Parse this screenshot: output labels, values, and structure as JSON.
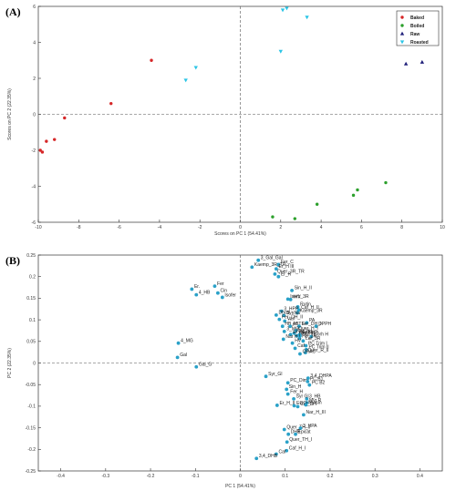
{
  "colors": {
    "Baked": "#d62728",
    "Boiled": "#2ca02c",
    "Raw": "#1f1f7a",
    "Roasted": "#2bc5e6",
    "loading": "#2aa1c8"
  },
  "chart_data": [
    {
      "type": "scatter",
      "panel_label": "(A)",
      "xlabel": "Scores on PC 1 (54.41%)",
      "ylabel": "Scores on PC 2 (22.35%)",
      "xlim": [
        -10,
        10
      ],
      "ylim": [
        -6,
        6
      ],
      "xticks": [
        -10,
        -8,
        -6,
        -4,
        -2,
        0,
        2,
        4,
        6,
        8,
        10
      ],
      "yticks": [
        -6,
        -4,
        -2,
        0,
        2,
        4,
        6
      ],
      "legend_position": "top-right",
      "series": [
        {
          "name": "Baked",
          "marker": "dot",
          "points": [
            [
              -9.9,
              -2.0
            ],
            [
              -9.8,
              -2.1
            ],
            [
              -9.6,
              -1.5
            ],
            [
              -9.2,
              -1.4
            ],
            [
              -8.7,
              -0.2
            ],
            [
              -6.4,
              0.6
            ],
            [
              -4.4,
              3.0
            ]
          ]
        },
        {
          "name": "Boiled",
          "marker": "dot",
          "points": [
            [
              2.7,
              -5.8
            ],
            [
              5.6,
              -4.5
            ],
            [
              5.8,
              -4.2
            ],
            [
              7.2,
              -3.8
            ],
            [
              3.8,
              -5.0
            ],
            [
              1.6,
              -5.7
            ]
          ]
        },
        {
          "name": "Raw",
          "marker": "triangle",
          "points": [
            [
              8.2,
              2.8
            ],
            [
              9.0,
              2.9
            ]
          ]
        },
        {
          "name": "Roasted",
          "marker": "triangle-down",
          "points": [
            [
              -2.7,
              1.9
            ],
            [
              -2.2,
              2.6
            ],
            [
              2.1,
              5.8
            ],
            [
              2.3,
              5.9
            ],
            [
              3.3,
              5.4
            ],
            [
              2.0,
              3.5
            ]
          ]
        }
      ]
    },
    {
      "type": "scatter",
      "panel_label": "(B)",
      "xlabel": "PC 1 (54.41%)",
      "ylabel": "PC 2 (22.35%)",
      "xlim": [
        -0.45,
        0.45
      ],
      "ylim": [
        -0.25,
        0.25
      ],
      "xticks": [
        -0.4,
        -0.3,
        -0.2,
        -0.1,
        0,
        0.1,
        0.2,
        0.3,
        0.4
      ],
      "yticks": [
        -0.25,
        -0.2,
        -0.15,
        -0.1,
        -0.05,
        0,
        0.05,
        0.1,
        0.15,
        0.2,
        0.25
      ],
      "points": [
        {
          "label": "3_Gal_Gal",
          "x": 0.04,
          "y": 0.238
        },
        {
          "label": "Fer_C",
          "x": 0.085,
          "y": 0.228
        },
        {
          "label": "Kaemp_3R_TR",
          "x": 0.026,
          "y": 0.222
        },
        {
          "label": "Er_H III",
          "x": 0.08,
          "y": 0.218
        },
        {
          "label": "Quer_3R_TR",
          "x": 0.077,
          "y": 0.206
        },
        {
          "label": "Er_R",
          "x": 0.085,
          "y": 0.2
        },
        {
          "label": "Er.",
          "x": -0.108,
          "y": 0.171
        },
        {
          "label": "Fer",
          "x": -0.057,
          "y": 0.178
        },
        {
          "label": "4_HB",
          "x": -0.098,
          "y": 0.158
        },
        {
          "label": "Cin",
          "x": -0.05,
          "y": 0.162
        },
        {
          "label": "Isofer",
          "x": -0.04,
          "y": 0.152
        },
        {
          "label": "Sin_H_II",
          "x": 0.115,
          "y": 0.168
        },
        {
          "label": "Isorh_3R",
          "x": 0.106,
          "y": 0.148
        },
        {
          "label": "IHV",
          "x": 0.112,
          "y": 0.147
        },
        {
          "label": "Rutin",
          "x": 0.128,
          "y": 0.13
        },
        {
          "label": "Caf_H_II",
          "x": 0.13,
          "y": 0.123
        },
        {
          "label": "3_HPP",
          "x": 0.092,
          "y": 0.12
        },
        {
          "label": "Kaemp_3R",
          "x": 0.127,
          "y": 0.116
        },
        {
          "label": "Dhcal",
          "x": 0.08,
          "y": 0.111
        },
        {
          "label": "SynNa",
          "x": 0.097,
          "y": 0.11
        },
        {
          "label": "Fer_DH_II",
          "x": 0.087,
          "y": 0.101
        },
        {
          "label": "Van",
          "x": 0.099,
          "y": 0.097
        },
        {
          "label": "PA",
          "x": 0.148,
          "y": 0.093
        },
        {
          "label": "HB_H",
          "x": 0.094,
          "y": 0.085
        },
        {
          "label": "ABTS",
          "x": 0.111,
          "y": 0.085
        },
        {
          "label": "Fer_DH_I",
          "x": 0.131,
          "y": 0.085
        },
        {
          "label": "DPPH",
          "x": 0.169,
          "y": 0.085
        },
        {
          "label": "3_MG",
          "x": 0.098,
          "y": 0.073
        },
        {
          "label": "Quer_H_I",
          "x": 0.124,
          "y": 0.075
        },
        {
          "label": "Nar_H I",
          "x": 0.12,
          "y": 0.069
        },
        {
          "label": "Er H1",
          "x": 0.112,
          "y": 0.066
        },
        {
          "label": "Gentisin",
          "x": 0.132,
          "y": 0.066
        },
        {
          "label": "Nar_H",
          "x": 0.126,
          "y": 0.063
        },
        {
          "label": "Caf_R",
          "x": 0.133,
          "y": 0.063
        },
        {
          "label": "Isorh H",
          "x": 0.158,
          "y": 0.061
        },
        {
          "label": "Nar H I",
          "x": 0.096,
          "y": 0.055
        },
        {
          "label": "HB_3R",
          "x": 0.132,
          "y": 0.057
        },
        {
          "label": "Lar_3R",
          "x": 0.14,
          "y": 0.051
        },
        {
          "label": "HV",
          "x": 0.116,
          "y": 0.046
        },
        {
          "label": "PC Trim I",
          "x": 0.146,
          "y": 0.04
        },
        {
          "label": "Caf",
          "x": 0.122,
          "y": 0.034
        },
        {
          "label": "PC Trim II",
          "x": 0.147,
          "y": 0.031
        },
        {
          "label": "Quer_R_II",
          "x": 0.145,
          "y": 0.024
        },
        {
          "label": "ORAC",
          "x": 0.133,
          "y": 0.021
        },
        {
          "label": "3,4_DHPA",
          "x": 0.151,
          "y": -0.035
        },
        {
          "label": "Syr_Gl",
          "x": 0.057,
          "y": -0.031
        },
        {
          "label": "PC_Dim",
          "x": 0.106,
          "y": -0.046
        },
        {
          "label": "PC B1",
          "x": 0.15,
          "y": -0.043
        },
        {
          "label": "PC B2",
          "x": 0.154,
          "y": -0.051
        },
        {
          "label": "Sin_H",
          "x": 0.103,
          "y": -0.061
        },
        {
          "label": "Fer_H",
          "x": 0.106,
          "y": -0.072
        },
        {
          "label": "3_HB",
          "x": 0.148,
          "y": -0.083
        },
        {
          "label": "Syr Gl",
          "x": 0.119,
          "y": -0.083
        },
        {
          "label": "Myr R",
          "x": 0.148,
          "y": -0.092
        },
        {
          "label": "Er_H_II",
          "x": 0.082,
          "y": -0.098
        },
        {
          "label": "EGC",
          "x": 0.12,
          "y": -0.099
        },
        {
          "label": "Caf_DH",
          "x": 0.128,
          "y": -0.101
        },
        {
          "label": "Myrsin",
          "x": 0.146,
          "y": -0.097
        },
        {
          "label": "Nar_H_III",
          "x": 0.141,
          "y": -0.12
        },
        {
          "label": "Quer_TH_II",
          "x": 0.098,
          "y": -0.154
        },
        {
          "label": "3_HPA",
          "x": 0.134,
          "y": -0.151
        },
        {
          "label": "DHB",
          "x": 0.107,
          "y": -0.165
        },
        {
          "label": "Epicat",
          "x": 0.123,
          "y": -0.165
        },
        {
          "label": "Quer_TH_I",
          "x": 0.104,
          "y": -0.183
        },
        {
          "label": "Caf_H_I",
          "x": 0.103,
          "y": -0.203
        },
        {
          "label": "Caf",
          "x": 0.08,
          "y": -0.211
        },
        {
          "label": "3,4_DHB",
          "x": 0.036,
          "y": -0.221
        },
        {
          "label": "4_MG",
          "x": -0.138,
          "y": 0.046
        },
        {
          "label": "Gal",
          "x": -0.14,
          "y": 0.013
        },
        {
          "label": "Gal_G",
          "x": -0.098,
          "y": -0.009
        }
      ]
    }
  ]
}
